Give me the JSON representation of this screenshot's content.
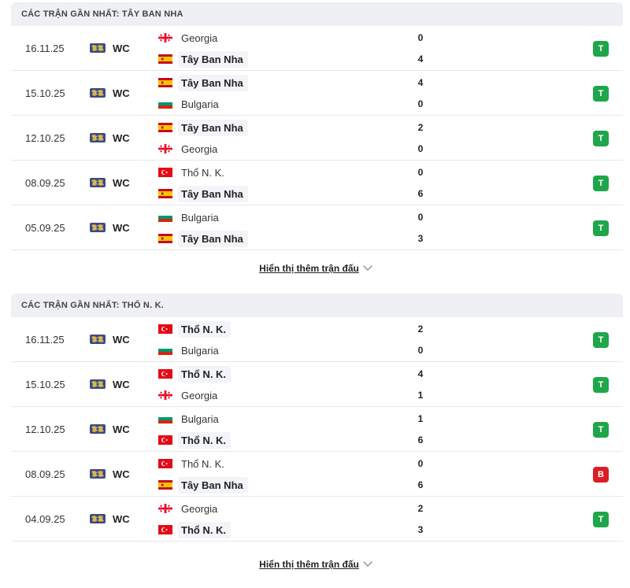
{
  "sections": [
    {
      "title": "CÁC TRẬN GẦN NHẤT: TÂY BAN NHA",
      "more_label": "Hiển thị thêm trận đấu",
      "matches": [
        {
          "date": "16.11.25",
          "comp": "WC",
          "home": {
            "name": "Georgia",
            "flag": "georgia",
            "score": "0",
            "focus": false
          },
          "away": {
            "name": "Tây Ban Nha",
            "flag": "spain",
            "score": "4",
            "focus": true
          },
          "result": "T",
          "result_type": "win"
        },
        {
          "date": "15.10.25",
          "comp": "WC",
          "home": {
            "name": "Tây Ban Nha",
            "flag": "spain",
            "score": "4",
            "focus": true
          },
          "away": {
            "name": "Bulgaria",
            "flag": "bulgaria",
            "score": "0",
            "focus": false
          },
          "result": "T",
          "result_type": "win"
        },
        {
          "date": "12.10.25",
          "comp": "WC",
          "home": {
            "name": "Tây Ban Nha",
            "flag": "spain",
            "score": "2",
            "focus": true
          },
          "away": {
            "name": "Georgia",
            "flag": "georgia",
            "score": "0",
            "focus": false
          },
          "result": "T",
          "result_type": "win"
        },
        {
          "date": "08.09.25",
          "comp": "WC",
          "home": {
            "name": "Thổ N. K.",
            "flag": "turkey",
            "score": "0",
            "focus": false
          },
          "away": {
            "name": "Tây Ban Nha",
            "flag": "spain",
            "score": "6",
            "focus": true
          },
          "result": "T",
          "result_type": "win"
        },
        {
          "date": "05.09.25",
          "comp": "WC",
          "home": {
            "name": "Bulgaria",
            "flag": "bulgaria",
            "score": "0",
            "focus": false
          },
          "away": {
            "name": "Tây Ban Nha",
            "flag": "spain",
            "score": "3",
            "focus": true
          },
          "result": "T",
          "result_type": "win"
        }
      ]
    },
    {
      "title": "CÁC TRẬN GẦN NHẤT: THỔ N. K.",
      "more_label": "Hiển thị thêm trận đấu",
      "matches": [
        {
          "date": "16.11.25",
          "comp": "WC",
          "home": {
            "name": "Thổ N. K.",
            "flag": "turkey",
            "score": "2",
            "focus": true
          },
          "away": {
            "name": "Bulgaria",
            "flag": "bulgaria",
            "score": "0",
            "focus": false
          },
          "result": "T",
          "result_type": "win"
        },
        {
          "date": "15.10.25",
          "comp": "WC",
          "home": {
            "name": "Thổ N. K.",
            "flag": "turkey",
            "score": "4",
            "focus": true
          },
          "away": {
            "name": "Georgia",
            "flag": "georgia",
            "score": "1",
            "focus": false
          },
          "result": "T",
          "result_type": "win"
        },
        {
          "date": "12.10.25",
          "comp": "WC",
          "home": {
            "name": "Bulgaria",
            "flag": "bulgaria",
            "score": "1",
            "focus": false
          },
          "away": {
            "name": "Thổ N. K.",
            "flag": "turkey",
            "score": "6",
            "focus": true
          },
          "result": "T",
          "result_type": "win"
        },
        {
          "date": "08.09.25",
          "comp": "WC",
          "home": {
            "name": "Thổ N. K.",
            "flag": "turkey",
            "score": "0",
            "focus": false
          },
          "away": {
            "name": "Tây Ban Nha",
            "flag": "spain",
            "score": "6",
            "focus": true
          },
          "result": "B",
          "result_type": "loss"
        },
        {
          "date": "04.09.25",
          "comp": "WC",
          "home": {
            "name": "Georgia",
            "flag": "georgia",
            "score": "2",
            "focus": false
          },
          "away": {
            "name": "Thổ N. K.",
            "flag": "turkey",
            "score": "3",
            "focus": true
          },
          "result": "T",
          "result_type": "win"
        }
      ]
    }
  ],
  "colors": {
    "win": "#1fa64a",
    "loss": "#dc1e24",
    "header_bg": "#eef0f3"
  }
}
